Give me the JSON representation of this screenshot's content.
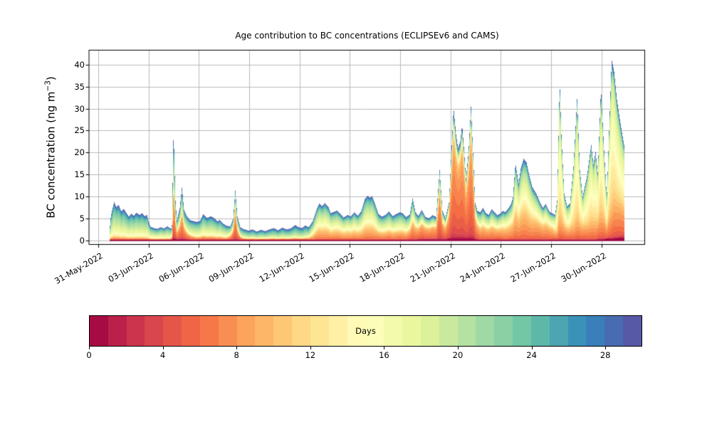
{
  "figure": {
    "title": "Age contribution to BC concentrations (ECLIPSEv6 and CAMS)",
    "background": "#ffffff"
  },
  "axes": {
    "ylabel": {
      "prefix": "BC concentration (ng m",
      "superscript": "−3",
      "suffix": ")"
    },
    "y_ticks": [
      0,
      5,
      10,
      15,
      20,
      25,
      30,
      35,
      40
    ],
    "x_tick_labels": [
      "31-May-2022",
      "03-Jun-2022",
      "06-Jun-2022",
      "09-Jun-2022",
      "12-Jun-2022",
      "15-Jun-2022",
      "18-Jun-2022",
      "21-Jun-2022",
      "24-Jun-2022",
      "27-Jun-2022",
      "30-Jun-2022"
    ],
    "x_tick_interval_days": 3,
    "grid": true,
    "grid_color": "#b2b2b2",
    "spine_color": "#000000",
    "ylim": [
      -0.97,
      43.3
    ]
  },
  "colorbar": {
    "label": "Days",
    "ticks": [
      0,
      4,
      8,
      12,
      16,
      20,
      24,
      28
    ],
    "min": 0,
    "max": 30,
    "cells": 30,
    "colormap": "Spectral",
    "colormap_stops": [
      [
        0.0,
        "#9e0142"
      ],
      [
        0.1,
        "#d53e4f"
      ],
      [
        0.2,
        "#f46d43"
      ],
      [
        0.3,
        "#fdae61"
      ],
      [
        0.4,
        "#fee08b"
      ],
      [
        0.5,
        "#ffffbf"
      ],
      [
        0.6,
        "#e6f598"
      ],
      [
        0.7,
        "#abdda4"
      ],
      [
        0.8,
        "#66c2a5"
      ],
      [
        0.9,
        "#3288bd"
      ],
      [
        1.0,
        "#5e4fa2"
      ]
    ]
  },
  "chart_data": {
    "type": "area",
    "stacked": true,
    "title": "Age contribution to BC concentrations (ECLIPSEv6 and CAMS)",
    "xlabel": "",
    "ylabel": "BC concentration (ng m−3)",
    "x_unit": "days since 31-May-2022 00:00",
    "y_unit": "ng m−3",
    "x_range_days": [
      0.64,
      31.34
    ],
    "legend": "colorbar (age in days, Spectral colormap: 0 = freshest/red at bottom of stack, 30 = oldest/blue-purple at top)",
    "age_model": {
      "note": "each sample's total is split over age bins 0-30 days: a fresh gaussian component, an aged gaussian component, a small old-age cap, plus a thin age-0 maroon baseline",
      "fresh_sigma": 2.0,
      "old_cap_fraction": 0.05,
      "old_cap_age": 27.3,
      "old_cap_sigma": 2.2
    },
    "columns": [
      "day",
      "total_ng_m3",
      "fresh_fraction",
      "aged_mean_age",
      "aged_sigma",
      "age0_baseline",
      "fresh_mean_age"
    ],
    "samples": [
      [
        0.64,
        0.5,
        0.07,
        20,
        4.4,
        0.12,
        7
      ],
      [
        0.7,
        4.5
      ],
      [
        0.78,
        6.2
      ],
      [
        0.93,
        8.6
      ],
      [
        1.05,
        7.4
      ],
      [
        1.2,
        7.9
      ],
      [
        1.35,
        6.4
      ],
      [
        1.5,
        7.0
      ],
      [
        1.65,
        6.1
      ],
      [
        1.8,
        5.2
      ],
      [
        1.95,
        5.9
      ],
      [
        2.1,
        5.4
      ],
      [
        2.25,
        6.1
      ],
      [
        2.45,
        5.6
      ],
      [
        2.6,
        6.0
      ],
      [
        2.75,
        5.3
      ],
      [
        2.9,
        5.6
      ],
      [
        2.97,
        4.2
      ],
      [
        3.1,
        2.9
      ],
      [
        3.3,
        2.6
      ],
      [
        3.5,
        2.4
      ],
      [
        3.7,
        2.8
      ],
      [
        3.9,
        2.5
      ],
      [
        4.1,
        3.0
      ],
      [
        4.25,
        2.6
      ],
      [
        4.37,
        2.4,
        0.2,
        20,
        4.4,
        0.2,
        7
      ],
      [
        4.47,
        24.9,
        0.48,
        21.5,
        4.0,
        0.45,
        7
      ],
      [
        4.58,
        9.0,
        0.45,
        21,
        4.2,
        0.35,
        7
      ],
      [
        4.67,
        4.3,
        0.4,
        21,
        4.2,
        0.3,
        7
      ],
      [
        4.84,
        7.0,
        0.45,
        21,
        4.2,
        0.3,
        7
      ],
      [
        4.97,
        11.7,
        0.5,
        21,
        4.2,
        0.35,
        7
      ],
      [
        5.1,
        6.5,
        0.42,
        21,
        4.2,
        0.3,
        7
      ],
      [
        5.27,
        5.2,
        0.3,
        20.5,
        4.3,
        0.25,
        7
      ],
      [
        5.45,
        4.4,
        0.22,
        20,
        4.4,
        0.18,
        7
      ],
      [
        5.65,
        4.2,
        0.16,
        20,
        4.4,
        0.13,
        7
      ],
      [
        5.85,
        4.0,
        0.13,
        20,
        4.4,
        0.12,
        7
      ],
      [
        6.05,
        4.2
      ],
      [
        6.24,
        5.8
      ],
      [
        6.46,
        4.9
      ],
      [
        6.7,
        5.3
      ],
      [
        6.88,
        4.9
      ],
      [
        7.1,
        4.1
      ],
      [
        7.22,
        4.5
      ],
      [
        7.43,
        3.6
      ],
      [
        7.64,
        3.1
      ],
      [
        7.86,
        3.0,
        0.3,
        20,
        4.4,
        0.14,
        7
      ],
      [
        8.03,
        4.8,
        0.45,
        20,
        4.3,
        0.2,
        6.8
      ],
      [
        8.15,
        11.2,
        0.62,
        20,
        4.3,
        0.25,
        6.8
      ],
      [
        8.28,
        5.2,
        0.45,
        20.5,
        4.3,
        0.2,
        6.8
      ],
      [
        8.45,
        2.8,
        0.25,
        21,
        4.3,
        0.13,
        7
      ],
      [
        8.62,
        2.4,
        0.15,
        21.5,
        4.3,
        0.12,
        7
      ],
      [
        8.96,
        2.0,
        0.12,
        22,
        4.3,
        0.12,
        7
      ],
      [
        9.17,
        2.3
      ],
      [
        9.43,
        1.8
      ],
      [
        9.68,
        2.2
      ],
      [
        9.94,
        1.9
      ],
      [
        10.19,
        2.3
      ],
      [
        10.45,
        2.6
      ],
      [
        10.7,
        2.1
      ],
      [
        10.96,
        2.7
      ],
      [
        11.21,
        2.3
      ],
      [
        11.46,
        2.5
      ],
      [
        11.72,
        3.3
      ],
      [
        11.93,
        2.8
      ],
      [
        12.14,
        2.6
      ],
      [
        12.31,
        3.2
      ],
      [
        12.53,
        2.8,
        0.16,
        21,
        4.4,
        0.12,
        8
      ],
      [
        12.78,
        4.2,
        0.24,
        19.5,
        4.4,
        0.12,
        8.5
      ],
      [
        13.0,
        6.8,
        0.28,
        18.5,
        4.4,
        0.12,
        8.5
      ],
      [
        13.16,
        8.2
      ],
      [
        13.33,
        7.6
      ],
      [
        13.5,
        8.3
      ],
      [
        13.72,
        7.3
      ],
      [
        13.84,
        6.0
      ],
      [
        14.05,
        6.3,
        0.3
      ],
      [
        14.22,
        6.6
      ],
      [
        14.45,
        5.7
      ],
      [
        14.61,
        5.0
      ],
      [
        14.86,
        5.6
      ],
      [
        15.03,
        5.2
      ],
      [
        15.25,
        6.2
      ],
      [
        15.46,
        5.4
      ],
      [
        15.67,
        6.5,
        0.28
      ],
      [
        15.88,
        9.2
      ],
      [
        16.05,
        10.0
      ],
      [
        16.18,
        9.5
      ],
      [
        16.31,
        9.9
      ],
      [
        16.48,
        8.2
      ],
      [
        16.69,
        5.8,
        0.3,
        19,
        4.4,
        0.12,
        8
      ],
      [
        16.9,
        5.2
      ],
      [
        17.11,
        5.6
      ],
      [
        17.32,
        6.4
      ],
      [
        17.54,
        5.3
      ],
      [
        17.75,
        5.8
      ],
      [
        17.96,
        6.2
      ],
      [
        18.13,
        6.0
      ],
      [
        18.34,
        5.1
      ],
      [
        18.56,
        5.7,
        0.38,
        19,
        4.4,
        0.15,
        7.5
      ],
      [
        18.73,
        9.4,
        0.42
      ],
      [
        18.9,
        6.2,
        0.45
      ],
      [
        19.07,
        5.3,
        0.48,
        19.5,
        4.4,
        0.25,
        7.2
      ],
      [
        19.28,
        6.6,
        0.52,
        19.5,
        4.4,
        0.3,
        7.2
      ],
      [
        19.49,
        5.0,
        0.53
      ],
      [
        19.7,
        4.7,
        0.52
      ],
      [
        19.92,
        5.4,
        0.52
      ],
      [
        20.13,
        5.0,
        0.55
      ],
      [
        20.34,
        15.7,
        0.72,
        19,
        4.2,
        0.35,
        6.8
      ],
      [
        20.51,
        6.4,
        0.58,
        19,
        4.2,
        0.3,
        6.8
      ],
      [
        20.68,
        4.8,
        0.55,
        19,
        4.2,
        0.3,
        6.8
      ],
      [
        20.89,
        8.0,
        0.68,
        18,
        4.0,
        0.4,
        6.8
      ],
      [
        21.06,
        21.0,
        0.78,
        18,
        4.0,
        0.5,
        6.8
      ],
      [
        21.17,
        29.8,
        0.8
      ],
      [
        21.32,
        23.5,
        0.8
      ],
      [
        21.44,
        20.5,
        0.8
      ],
      [
        21.57,
        22.0,
        0.81
      ],
      [
        21.68,
        25.8,
        0.82
      ],
      [
        21.78,
        21.0,
        0.8
      ],
      [
        21.91,
        13.6,
        0.75
      ],
      [
        22.06,
        19.5,
        0.78
      ],
      [
        22.21,
        30.1,
        0.8
      ],
      [
        22.34,
        19.0,
        0.75
      ],
      [
        22.46,
        8.2,
        0.6,
        18.5,
        4.2,
        0.35,
        7
      ],
      [
        22.59,
        6.5,
        0.5,
        19,
        4.3,
        0.25,
        7.2
      ],
      [
        22.76,
        6.2,
        0.42,
        19,
        4.4,
        0.15,
        7.8
      ],
      [
        22.93,
        7.2
      ],
      [
        23.1,
        6.0
      ],
      [
        23.27,
        5.6
      ],
      [
        23.44,
        6.9
      ],
      [
        23.61,
        6.2
      ],
      [
        23.78,
        5.5
      ],
      [
        23.95,
        5.9
      ],
      [
        24.12,
        6.5,
        0.38,
        18,
        4.4,
        0.12,
        8.2
      ],
      [
        24.25,
        6.2
      ],
      [
        24.42,
        7.0
      ],
      [
        24.59,
        8.0
      ],
      [
        24.71,
        9.5
      ],
      [
        24.86,
        17.4,
        0.33,
        17,
        4.2,
        0.12,
        8.2
      ],
      [
        25.05,
        12.8
      ],
      [
        25.18,
        16.2
      ],
      [
        25.35,
        18.4
      ],
      [
        25.52,
        17.6
      ],
      [
        25.69,
        14.5
      ],
      [
        25.86,
        12.0,
        0.36
      ],
      [
        26.11,
        10.4,
        0.4,
        17.5,
        4.3,
        0.15,
        7.8
      ],
      [
        26.33,
        8.4,
        0.42
      ],
      [
        26.5,
        7.2,
        0.42
      ],
      [
        26.67,
        8.1
      ],
      [
        26.79,
        7.0,
        0.44
      ],
      [
        26.92,
        6.2
      ],
      [
        27.09,
        5.9,
        0.4
      ],
      [
        27.22,
        5.6,
        0.3,
        16.5,
        4.0,
        0.13,
        7.5
      ],
      [
        27.35,
        9.0,
        0.18,
        16,
        3.6,
        0.12,
        7.5
      ],
      [
        27.5,
        36.2,
        0.11,
        15.5,
        3.4,
        0.12,
        7.5
      ],
      [
        27.6,
        24.0,
        0.15
      ],
      [
        27.77,
        10.5,
        0.28,
        16.5,
        3.8,
        0.12,
        7.5
      ],
      [
        27.94,
        7.6,
        0.34,
        17,
        4.0,
        0.12,
        7.5
      ],
      [
        28.11,
        8.2,
        0.3,
        16.5,
        3.9,
        0.12,
        7.5
      ],
      [
        28.32,
        16.5,
        0.15,
        15.5,
        3.4,
        0.12,
        7.5
      ],
      [
        28.54,
        32.4,
        0.11
      ],
      [
        28.7,
        16.0,
        0.2,
        16,
        3.6,
        0.12,
        7.5
      ],
      [
        28.87,
        9.8,
        0.3,
        16.5,
        3.8,
        0.12,
        7.5
      ],
      [
        29.13,
        14.5,
        0.2,
        16,
        3.6,
        0.12,
        7.5
      ],
      [
        29.38,
        21.7,
        0.15,
        15.5,
        3.5,
        0.12,
        7.5
      ],
      [
        29.51,
        17.2,
        0.2
      ],
      [
        29.64,
        20.0,
        0.16
      ],
      [
        29.77,
        15.2,
        0.22,
        15.5,
        3.5,
        0.25,
        7.2
      ],
      [
        29.96,
        34.3,
        0.12,
        15,
        3.3,
        0.3,
        7.2
      ],
      [
        30.15,
        20.0,
        0.2,
        15.5,
        3.5,
        0.35,
        7.2
      ],
      [
        30.31,
        9.6,
        0.25,
        17,
        4.0,
        0.4,
        7.2
      ],
      [
        30.45,
        25.0,
        0.16,
        15.2,
        3.4,
        0.4,
        7.2
      ],
      [
        30.6,
        40.7,
        0.13,
        15,
        3.3,
        0.45,
        7.2
      ],
      [
        30.74,
        38.0,
        0.18,
        15,
        3.4,
        0.5,
        7.2
      ],
      [
        30.91,
        31.5,
        0.22,
        15.5,
        3.5,
        0.55,
        7.2
      ],
      [
        31.08,
        27.0,
        0.26,
        16,
        3.6,
        0.6,
        7.2
      ],
      [
        31.25,
        23.0,
        0.28
      ],
      [
        31.34,
        21.0,
        0.3
      ]
    ]
  }
}
